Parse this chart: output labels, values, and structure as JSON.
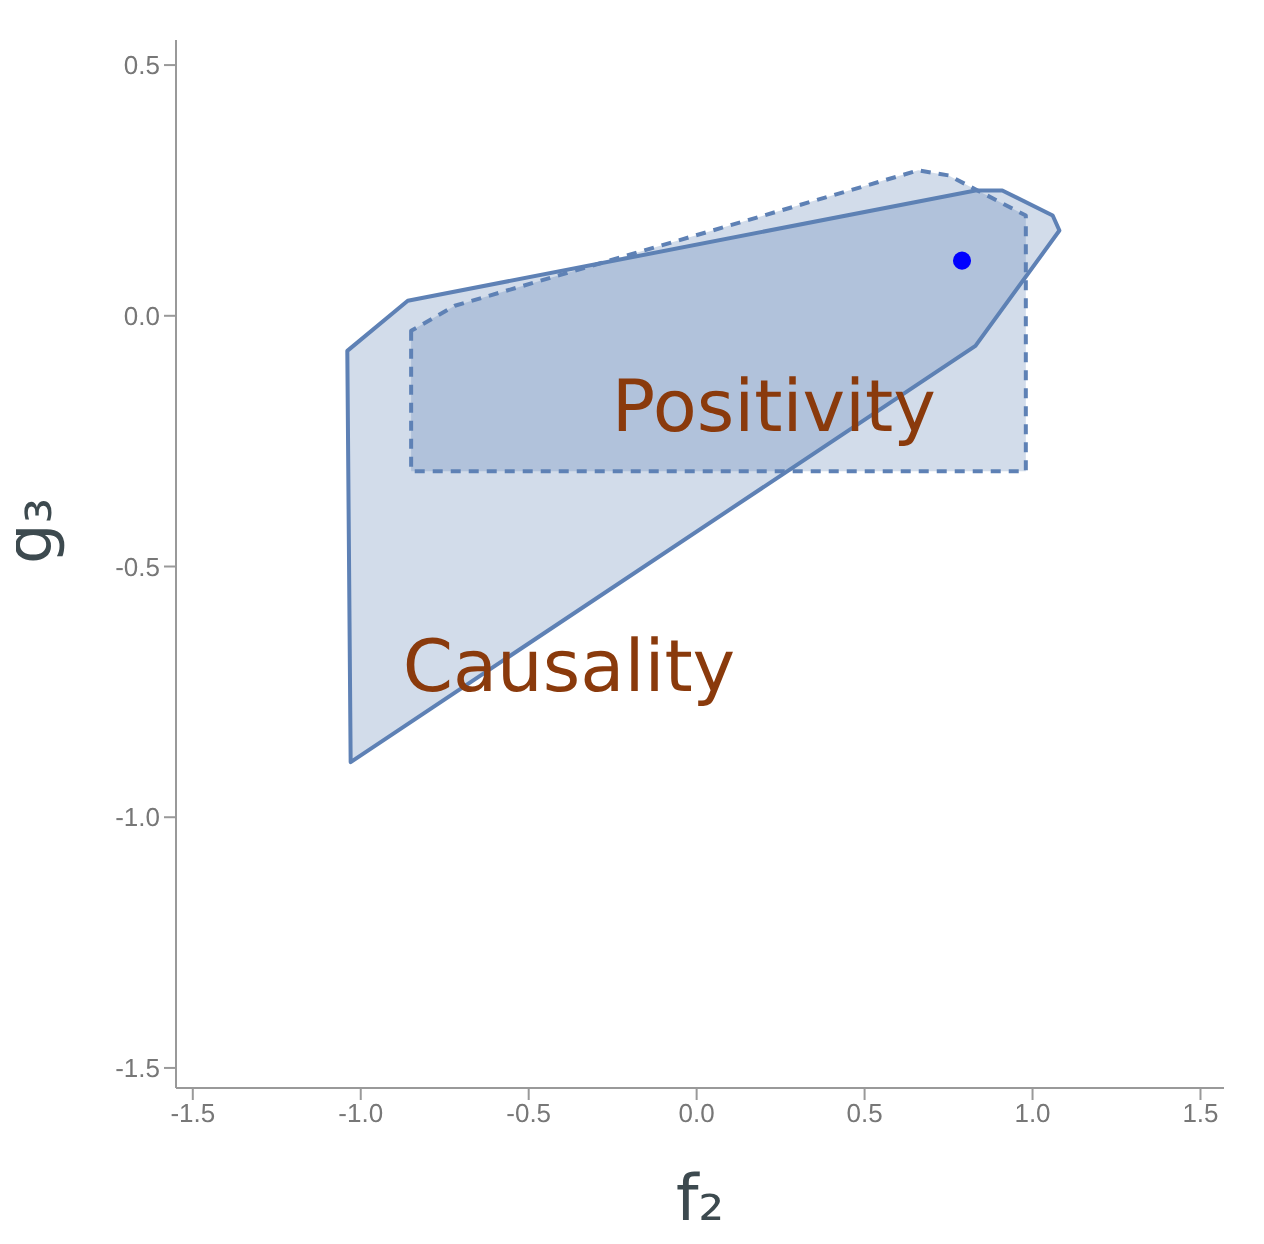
{
  "chart_data": {
    "type": "area",
    "xlabel": "f₂",
    "ylabel": "g₃",
    "xlim": [
      -1.55,
      1.57
    ],
    "ylim": [
      -1.54,
      0.55
    ],
    "xticks": [
      -1.5,
      {
        "value": -1,
        "label": "-1.0"
      },
      -0.5,
      {
        "value": 0,
        "label": "0.0"
      },
      0.5,
      {
        "value": 1,
        "label": "1.0"
      },
      1.5
    ],
    "yticks": [
      -1.5,
      {
        "value": -1,
        "label": "-1.0"
      },
      -0.5,
      {
        "value": 0,
        "label": "0.0"
      },
      0.5
    ],
    "series": [
      {
        "name": "Causality",
        "color": "#5e81b5",
        "line_style": "solid",
        "x": [
          -1.03,
          -1.04,
          -0.86,
          0.83,
          0.91,
          1.06,
          1.08,
          0.83,
          -1.03
        ],
        "values": [
          -0.89,
          -0.07,
          0.03,
          0.25,
          0.25,
          0.2,
          0.17,
          -0.06,
          -0.89
        ]
      },
      {
        "name": "Positivity",
        "color": "#5e81b5",
        "line_style": "dashed",
        "x": [
          -0.85,
          -0.85,
          0.98,
          0.98,
          0.75,
          0.66,
          -0.72,
          -0.85
        ],
        "values": [
          -0.03,
          -0.31,
          -0.31,
          0.2,
          0.28,
          0.29,
          0.02,
          -0.03
        ]
      },
      {
        "type": "scatter",
        "color": "#0000ff",
        "marker": "circle",
        "x": [
          0.79
        ],
        "values": [
          0.11
        ]
      }
    ]
  }
}
